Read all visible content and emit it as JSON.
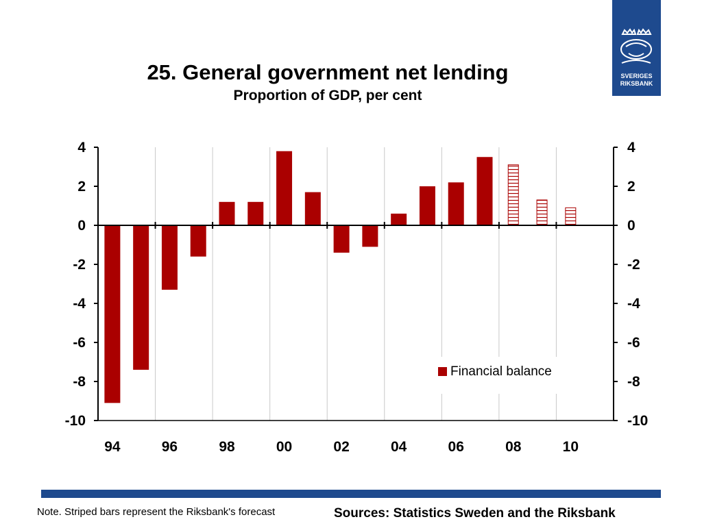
{
  "title": "25. General government net lending",
  "subtitle": "Proportion of GDP, per cent",
  "logo": {
    "line1": "SVERIGES",
    "line2": "RIKSBANK"
  },
  "note": "Note. Striped bars represent the Riksbank's forecast",
  "sources": "Sources: Statistics Sweden and the Riksbank",
  "colors": {
    "bar": "#aa0000",
    "brand": "#1e4a8e",
    "grid": "#c8c8c8"
  },
  "chart_data": {
    "type": "bar",
    "categories": [
      "94",
      "95",
      "96",
      "97",
      "98",
      "99",
      "00",
      "01",
      "02",
      "03",
      "04",
      "05",
      "06",
      "07",
      "08",
      "09",
      "10"
    ],
    "x_tick_labels": [
      "94",
      "96",
      "98",
      "00",
      "02",
      "04",
      "06",
      "08",
      "10"
    ],
    "series": [
      {
        "name": "Financial balance",
        "values": [
          -9.1,
          -7.4,
          -3.3,
          -1.6,
          1.2,
          1.2,
          3.8,
          1.7,
          -1.4,
          -1.1,
          0.6,
          2.0,
          2.2,
          3.5,
          3.1,
          1.3,
          0.9
        ],
        "forecast_from_index": 14
      }
    ],
    "ylim": [
      -10,
      4
    ],
    "y_ticks": [
      "4",
      "2",
      "0",
      "-2",
      "-4",
      "-6",
      "-8",
      "-10"
    ],
    "right_axis": true,
    "grid": true,
    "legend_position": "bottom-right",
    "xlabel": "",
    "ylabel": ""
  }
}
